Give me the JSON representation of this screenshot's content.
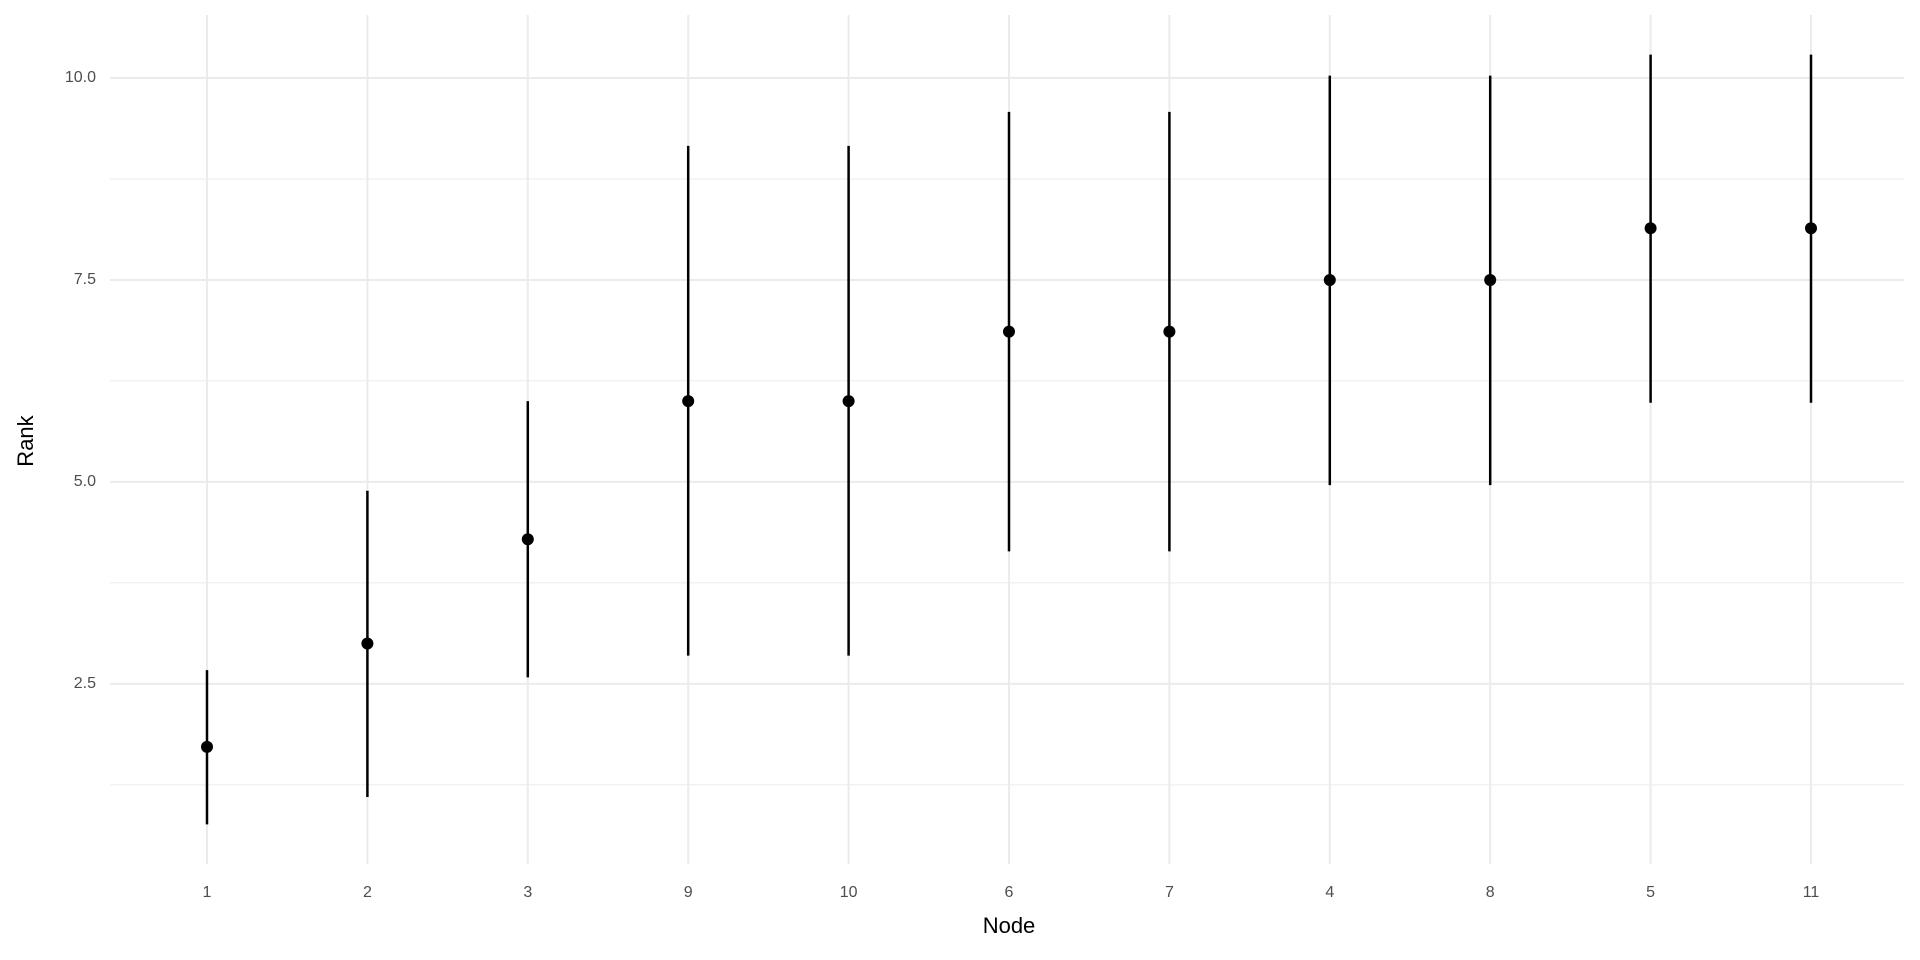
{
  "chart_data": {
    "type": "pointrange",
    "x_label": "Node",
    "y_label": "Rank",
    "categories": [
      "1",
      "2",
      "3",
      "9",
      "10",
      "6",
      "7",
      "4",
      "8",
      "5",
      "11"
    ],
    "values": [
      1.72,
      3.0,
      4.29,
      6.0,
      6.0,
      6.86,
      6.86,
      7.5,
      7.5,
      8.14,
      8.14
    ],
    "lower": [
      0.76,
      1.1,
      2.58,
      2.85,
      2.85,
      4.14,
      4.14,
      4.96,
      4.96,
      5.98,
      5.98
    ],
    "upper": [
      2.67,
      4.89,
      6.0,
      9.16,
      9.16,
      9.58,
      9.58,
      10.03,
      10.03,
      10.29,
      10.29
    ],
    "color": "#000000",
    "ylim": [
      0.27,
      10.78
    ],
    "yticks": [
      2.5,
      {
        "value": 5,
        "label": "5.0"
      },
      7.5,
      {
        "value": 10,
        "label": "10.0"
      }
    ],
    "y_minor_ticks": [
      1.25,
      3.75,
      6.25,
      8.75
    ],
    "grid": true
  }
}
